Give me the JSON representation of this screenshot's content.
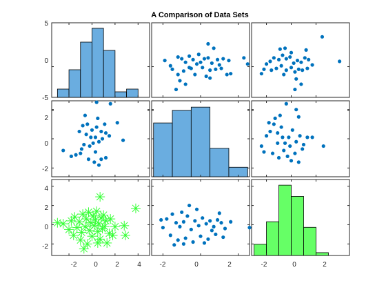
{
  "window": {
    "title": "A Comparison of Data Sets"
  },
  "chart_data": {
    "type": "scatter-matrix",
    "title": "A Comparison of Data Sets",
    "grid": false,
    "colors": {
      "scatter": "#0072BD",
      "hist": "#6AADE0",
      "hist_green": "#66FF66",
      "star": "#33FF33",
      "axis": "#262626"
    },
    "ticks": {
      "row1_y": [
        "5",
        "0",
        "-5"
      ],
      "row2_y": [
        "2",
        "0",
        "-2"
      ],
      "row3_y": [
        "4",
        "2",
        "0",
        "-2"
      ],
      "col1_x": [
        "-2",
        "0",
        "2",
        "4"
      ],
      "col2_x": [
        "-2",
        "0",
        "2"
      ],
      "col3_x": [
        "-2",
        "0",
        "2"
      ]
    },
    "var_ranges": {
      "v1": [
        -3.5,
        5.0
      ],
      "v2": [
        -2.6,
        2.6
      ],
      "v3": [
        -3.2,
        4.7
      ]
    },
    "histograms": [
      {
        "panel": "r1c1",
        "color": "hist",
        "edges": [
          -3,
          -2,
          -1,
          0,
          1,
          2,
          3,
          4
        ],
        "counts": [
          3,
          10,
          20,
          25,
          17,
          2,
          3
        ],
        "ymax": 27
      },
      {
        "panel": "r2c2",
        "color": "hist",
        "edges": [
          -2.5,
          -1.5,
          -0.5,
          0.5,
          1.5,
          2.5
        ],
        "counts": [
          17,
          21,
          22,
          9,
          3
        ],
        "ymax": 24
      },
      {
        "panel": "r3c3",
        "color": "hist_green",
        "edges": [
          -3,
          -2,
          -1,
          0,
          1,
          2,
          3
        ],
        "counts": [
          4,
          12,
          25,
          21,
          10,
          1
        ],
        "ymax": 27
      }
    ],
    "scatter_panels": [
      {
        "panel": "r1c2",
        "marker": "dot",
        "x_var": "v2",
        "y_var": "v1",
        "points": [
          [
            -1.9,
            0.7
          ],
          [
            -1.6,
            0.1
          ],
          [
            -1.2,
            1.1
          ],
          [
            -1.0,
            0.9
          ],
          [
            -0.8,
            0.5
          ],
          [
            -0.6,
            1.2
          ],
          [
            -0.4,
            0.8
          ],
          [
            -0.2,
            0.3
          ],
          [
            0.0,
            0.5
          ],
          [
            0.2,
            0.9
          ],
          [
            0.4,
            1.0
          ],
          [
            0.6,
            0.4
          ],
          [
            0.9,
            0.8
          ],
          [
            1.2,
            0.9
          ],
          [
            1.5,
            0.7
          ],
          [
            -1.5,
            -0.3
          ],
          [
            -1.2,
            -0.9
          ],
          [
            -0.9,
            -0.5
          ],
          [
            -0.5,
            -0.2
          ],
          [
            0.1,
            -0.1
          ],
          [
            0.5,
            -0.4
          ],
          [
            0.8,
            -0.3
          ],
          [
            1.1,
            -0.2
          ],
          [
            1.4,
            -0.9
          ],
          [
            -1.1,
            -1.6
          ],
          [
            -1.3,
            -2.6
          ],
          [
            -0.8,
            -2.0
          ],
          [
            0.5,
            -1.3
          ],
          [
            1.6,
            -0.8
          ],
          [
            0.4,
            2.6
          ],
          [
            0.7,
            2.1
          ],
          [
            -0.1,
            1.4
          ],
          [
            1.0,
            0.2
          ],
          [
            2.3,
            1.0
          ],
          [
            2.5,
            0.3
          ],
          [
            -0.3,
            -0.9
          ],
          [
            0.3,
            -1.1
          ],
          [
            -0.6,
            -0.1
          ]
        ]
      },
      {
        "panel": "r1c3",
        "marker": "dot",
        "x_var": "v3",
        "y_var": "v1",
        "points": [
          [
            -2.4,
            -0.8
          ],
          [
            -2.0,
            0.3
          ],
          [
            -1.7,
            0.6
          ],
          [
            -1.4,
            1.0
          ],
          [
            -1.0,
            0.8
          ],
          [
            -0.7,
            1.3
          ],
          [
            -0.4,
            0.9
          ],
          [
            -0.1,
            1.1
          ],
          [
            0.2,
            0.4
          ],
          [
            0.5,
            0.7
          ],
          [
            0.8,
            0.5
          ],
          [
            1.1,
            1.0
          ],
          [
            1.4,
            0.8
          ],
          [
            1.7,
            0.2
          ],
          [
            -1.6,
            -0.4
          ],
          [
            -1.2,
            -0.2
          ],
          [
            -0.8,
            0.1
          ],
          [
            -0.4,
            -0.4
          ],
          [
            0.0,
            -0.1
          ],
          [
            0.3,
            -0.6
          ],
          [
            0.6,
            -0.3
          ],
          [
            0.9,
            -0.4
          ],
          [
            1.3,
            -0.2
          ],
          [
            -0.6,
            -0.9
          ],
          [
            0.4,
            -1.4
          ],
          [
            0.8,
            -2.0
          ],
          [
            0.3,
            -2.6
          ],
          [
            -0.9,
            2.0
          ],
          [
            -0.5,
            2.1
          ],
          [
            2.5,
            3.4
          ],
          [
            3.9,
            0.6
          ],
          [
            1.2,
            1.9
          ],
          [
            0.0,
            1.6
          ],
          [
            -2.2,
            -0.3
          ]
        ]
      },
      {
        "panel": "r2c1",
        "marker": "dot",
        "x_var": "v1",
        "y_var": "v2",
        "points": [
          [
            -2.5,
            -0.8
          ],
          [
            -1.8,
            -1.2
          ],
          [
            -1.4,
            -1.1
          ],
          [
            -1.0,
            -1.0
          ],
          [
            -0.7,
            -0.4
          ],
          [
            -0.5,
            0.3
          ],
          [
            -0.2,
            -0.5
          ],
          [
            0.1,
            -0.3
          ],
          [
            0.3,
            0.1
          ],
          [
            0.6,
            -0.2
          ],
          [
            0.9,
            0.0
          ],
          [
            1.2,
            0.4
          ],
          [
            1.5,
            0.2
          ],
          [
            -1.1,
            0.5
          ],
          [
            -0.8,
            0.9
          ],
          [
            -0.4,
            1.0
          ],
          [
            0.0,
            0.6
          ],
          [
            0.4,
            0.8
          ],
          [
            0.8,
            0.5
          ],
          [
            1.1,
            1.0
          ],
          [
            -0.3,
            -1.4
          ],
          [
            0.2,
            -1.6
          ],
          [
            0.6,
            -1.8
          ],
          [
            0.8,
            -1.4
          ],
          [
            1.2,
            -1.3
          ],
          [
            0.4,
            2.5
          ],
          [
            1.6,
            2.4
          ],
          [
            0.5,
            1.4
          ],
          [
            -0.6,
            1.6
          ],
          [
            2.7,
            -0.1
          ],
          [
            2.2,
            1.1
          ],
          [
            -0.1,
            0.1
          ],
          [
            0.3,
            -0.9
          ],
          [
            -0.9,
            -0.7
          ]
        ]
      },
      {
        "panel": "r2c3",
        "marker": "dot",
        "x_var": "v3",
        "y_var": "v2",
        "points": [
          [
            -2.4,
            -0.5
          ],
          [
            -2.2,
            -0.9
          ],
          [
            -2.0,
            0.2
          ],
          [
            -1.7,
            0.5
          ],
          [
            -1.4,
            1.0
          ],
          [
            -1.1,
            0.4
          ],
          [
            -0.8,
            0.8
          ],
          [
            -0.5,
            -0.3
          ],
          [
            -0.2,
            0.1
          ],
          [
            0.1,
            0.6
          ],
          [
            0.4,
            -0.2
          ],
          [
            0.7,
            0.2
          ],
          [
            1.0,
            -0.4
          ],
          [
            1.3,
            0.1
          ],
          [
            -1.5,
            -1.0
          ],
          [
            -1.0,
            -1.3
          ],
          [
            -0.6,
            -0.8
          ],
          [
            -0.3,
            -1.2
          ],
          [
            0.0,
            -1.5
          ],
          [
            0.3,
            -1.0
          ],
          [
            0.6,
            -1.6
          ],
          [
            0.9,
            -0.7
          ],
          [
            -1.3,
            1.4
          ],
          [
            -0.9,
            1.6
          ],
          [
            -0.4,
            2.4
          ],
          [
            0.4,
            2.0
          ],
          [
            -1.8,
            1.1
          ],
          [
            1.7,
            0.1
          ],
          [
            2.6,
            -0.5
          ],
          [
            -0.1,
            -0.5
          ],
          [
            0.6,
            1.5
          ],
          [
            -0.7,
            0.1
          ],
          [
            -1.1,
            -0.3
          ]
        ]
      },
      {
        "panel": "r3c1",
        "marker": "star",
        "x_var": "v1",
        "y_var": "v3",
        "points": [
          [
            -3.0,
            0.2
          ],
          [
            -2.5,
            0.1
          ],
          [
            -2.0,
            -0.5
          ],
          [
            -1.8,
            0.4
          ],
          [
            -1.6,
            -1.1
          ],
          [
            -1.5,
            0.8
          ],
          [
            -1.3,
            -0.3
          ],
          [
            -1.1,
            0.3
          ],
          [
            -1.0,
            -1.6
          ],
          [
            -0.9,
            -0.8
          ],
          [
            -0.8,
            1.1
          ],
          [
            -0.6,
            -0.2
          ],
          [
            -0.5,
            0.6
          ],
          [
            -0.4,
            -2.0
          ],
          [
            -0.3,
            1.3
          ],
          [
            -0.2,
            -0.6
          ],
          [
            -0.1,
            0.2
          ],
          [
            0.0,
            -1.2
          ],
          [
            0.1,
            0.9
          ],
          [
            0.2,
            -0.1
          ],
          [
            0.3,
            0.5
          ],
          [
            0.4,
            1.4
          ],
          [
            0.5,
            -0.7
          ],
          [
            0.6,
            0.1
          ],
          [
            0.7,
            -1.5
          ],
          [
            0.8,
            0.7
          ],
          [
            0.9,
            -0.4
          ],
          [
            1.0,
            1.0
          ],
          [
            1.1,
            -0.2
          ],
          [
            1.2,
            0.4
          ],
          [
            1.3,
            -1.9
          ],
          [
            1.5,
            -0.9
          ],
          [
            1.6,
            0.6
          ],
          [
            1.8,
            -1.1
          ],
          [
            2.0,
            -0.2
          ],
          [
            0.7,
            2.9
          ],
          [
            -0.7,
            -2.5
          ],
          [
            0.5,
            -1.9
          ],
          [
            2.8,
            -0.1
          ],
          [
            2.9,
            -1.1
          ],
          [
            3.8,
            1.7
          ]
        ]
      },
      {
        "panel": "r3c2",
        "marker": "dot",
        "x_var": "v2",
        "y_var": "v3",
        "points": [
          [
            -2.0,
            -0.3
          ],
          [
            -1.8,
            0.6
          ],
          [
            -1.5,
            1.1
          ],
          [
            -1.3,
            0.2
          ],
          [
            -1.1,
            -0.2
          ],
          [
            -0.9,
            0.3
          ],
          [
            -0.7,
            0.9
          ],
          [
            -0.5,
            -0.5
          ],
          [
            -0.3,
            0.4
          ],
          [
            -0.1,
            -0.1
          ],
          [
            0.1,
            0.7
          ],
          [
            0.3,
            0.1
          ],
          [
            0.5,
            0.4
          ],
          [
            0.7,
            -0.2
          ],
          [
            0.9,
            0.5
          ],
          [
            1.1,
            0.2
          ],
          [
            1.3,
            -0.4
          ],
          [
            1.6,
            0.3
          ],
          [
            -1.6,
            -1.1
          ],
          [
            -1.2,
            -1.6
          ],
          [
            -0.8,
            -1.4
          ],
          [
            -0.4,
            -1.8
          ],
          [
            0.0,
            -1.2
          ],
          [
            0.4,
            -1.5
          ],
          [
            0.8,
            -1.0
          ],
          [
            1.2,
            -1.3
          ],
          [
            -1.4,
            -2.1
          ],
          [
            -0.9,
            -2.0
          ],
          [
            0.2,
            -1.9
          ],
          [
            -0.6,
            2.0
          ],
          [
            -0.2,
            1.6
          ],
          [
            -1.0,
            1.3
          ],
          [
            2.6,
            -0.3
          ],
          [
            1.0,
            1.2
          ],
          [
            -2.1,
            0.5
          ],
          [
            0.6,
            -0.6
          ]
        ]
      }
    ]
  }
}
